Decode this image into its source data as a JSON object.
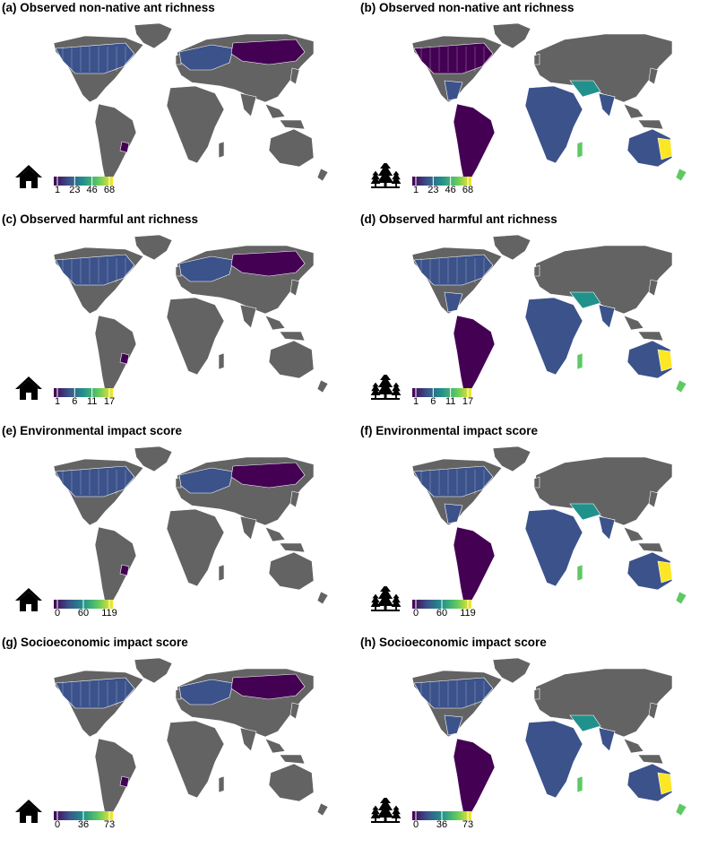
{
  "panels": [
    {
      "id": "a",
      "title": "(a) Observed non-native ant richness",
      "context": "indoor",
      "scale": {
        "ticks": [
          "1",
          "23",
          "46",
          "68"
        ]
      }
    },
    {
      "id": "b",
      "title": "(b) Observed non-native ant richness",
      "context": "outdoor",
      "scale": {
        "ticks": [
          "1",
          "23",
          "46",
          "68"
        ]
      }
    },
    {
      "id": "c",
      "title": "(c) Observed harmful ant richness",
      "context": "indoor",
      "scale": {
        "ticks": [
          "1",
          "6",
          "11",
          "17"
        ]
      }
    },
    {
      "id": "d",
      "title": "(d) Observed harmful ant richness",
      "context": "outdoor",
      "scale": {
        "ticks": [
          "1",
          "6",
          "11",
          "17"
        ]
      }
    },
    {
      "id": "e",
      "title": "(e) Environmental impact score",
      "context": "indoor",
      "scale": {
        "ticks": [
          "0",
          "60",
          "119"
        ]
      }
    },
    {
      "id": "f",
      "title": "(f) Environmental impact score",
      "context": "outdoor",
      "scale": {
        "ticks": [
          "0",
          "60",
          "119"
        ]
      }
    },
    {
      "id": "g",
      "title": "(g) Socioeconomic impact score",
      "context": "indoor",
      "scale": {
        "ticks": [
          "0",
          "36",
          "73"
        ]
      }
    },
    {
      "id": "h",
      "title": "(h) Socioeconomic impact score",
      "context": "outdoor",
      "scale": {
        "ticks": [
          "0",
          "36",
          "73"
        ]
      }
    }
  ],
  "icons": {
    "indoor": "house-icon",
    "outdoor": "trees-icon"
  },
  "colors": {
    "no_data": "#636363",
    "border": "#ffffff",
    "viridis": [
      "#440154",
      "#3b528b",
      "#21918c",
      "#5ec962",
      "#fde725"
    ]
  }
}
